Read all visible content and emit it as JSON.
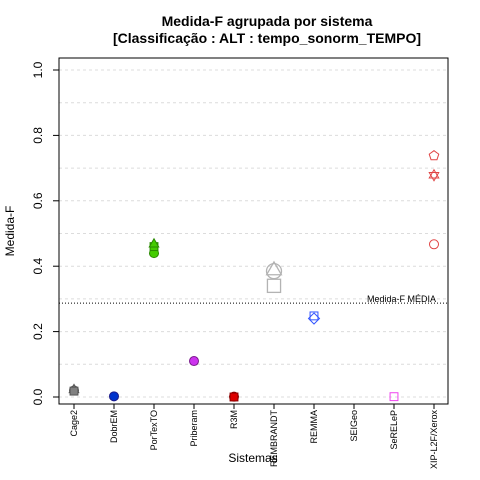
{
  "chart_data": {
    "type": "scatter",
    "title": "Medida-F agrupada por sistema",
    "subtitle": "[Classificação : ALT : tempo_sonorm_TEMPO]",
    "xlabel": "Sistemas",
    "ylabel": "Medida-F",
    "ylim": [
      0,
      1
    ],
    "yticks": [
      "0.0",
      "0.2",
      "0.4",
      "0.6",
      "0.8",
      "1.0"
    ],
    "grid": "horizontal dashed",
    "categories": [
      "Cage2",
      "DobrEM",
      "PorTexTO",
      "Priberam",
      "R3M",
      "REMBRANDT",
      "REMMA",
      "SEIGeo",
      "SeRELeP",
      "XIP-L2F/Xerox"
    ],
    "reference_line": {
      "label": "Medida-F MÉDIA",
      "value": 0.287
    },
    "points": [
      {
        "category": "Cage2",
        "y": 0.02,
        "shape": "circle",
        "color": "#555555",
        "fill": "#808080"
      },
      {
        "category": "Cage2",
        "y": 0.025,
        "shape": "triangle",
        "color": "#555555",
        "fill": "#808080"
      },
      {
        "category": "Cage2",
        "y": 0.018,
        "shape": "square",
        "color": "#555555",
        "fill": "#808080"
      },
      {
        "category": "DobrEM",
        "y": 0.002,
        "shape": "circle",
        "color": "#1a1a8c",
        "fill": "#0033cc"
      },
      {
        "category": "PorTexTO",
        "y": 0.44,
        "shape": "circle",
        "color": "#2a8a00",
        "fill": "#44cc00"
      },
      {
        "category": "PorTexTO",
        "y": 0.46,
        "shape": "square",
        "color": "#2a8a00",
        "fill": "#44cc00"
      },
      {
        "category": "PorTexTO",
        "y": 0.47,
        "shape": "triangle",
        "color": "#2a8a00",
        "fill": "#44cc00"
      },
      {
        "category": "Priberam",
        "y": 0.11,
        "shape": "circle",
        "color": "#7a1a8c",
        "fill": "#cc33ee"
      },
      {
        "category": "R3M",
        "y": 0.001,
        "shape": "circle",
        "color": "#8c0000",
        "fill": "#dd0000"
      },
      {
        "category": "R3M",
        "y": 0.0,
        "shape": "square",
        "color": "#8c0000",
        "fill": "#dd0000"
      },
      {
        "category": "REMBRANDT",
        "y": 0.34,
        "shape": "open-square",
        "color": "#b3b3b3"
      },
      {
        "category": "REMBRANDT",
        "y": 0.385,
        "shape": "open-circle",
        "color": "#b3b3b3"
      },
      {
        "category": "REMBRANDT",
        "y": 0.39,
        "shape": "open-triangle",
        "color": "#b3b3b3"
      },
      {
        "category": "REMMA",
        "y": 0.24,
        "shape": "open-diamond",
        "color": "#3355ff"
      },
      {
        "category": "REMMA",
        "y": 0.248,
        "shape": "open-square",
        "color": "#3355ff"
      },
      {
        "category": "SeRELeP",
        "y": 0.001,
        "shape": "open-square",
        "color": "#ee44ee"
      },
      {
        "category": "XIP-L2F/Xerox",
        "y": 0.467,
        "shape": "open-circle",
        "color": "#e04444"
      },
      {
        "category": "XIP-L2F/Xerox",
        "y": 0.678,
        "shape": "open-star",
        "color": "#e04444"
      },
      {
        "category": "XIP-L2F/Xerox",
        "y": 0.738,
        "shape": "open-pentagon",
        "color": "#e04444"
      }
    ]
  }
}
